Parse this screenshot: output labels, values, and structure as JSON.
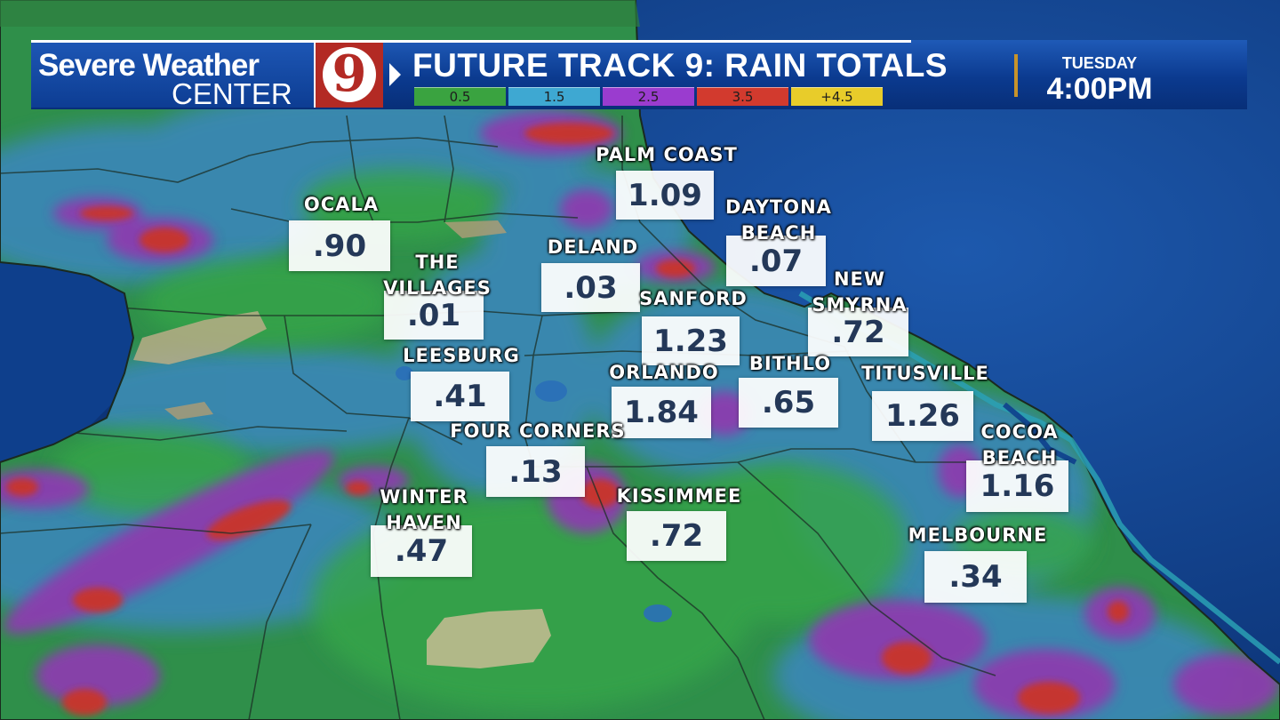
{
  "header": {
    "brand_line1": "Severe Weather",
    "brand_line2": "CENTER",
    "logo_text": "9",
    "title": "FUTURE TRACK 9: RAIN TOTALS",
    "day": "TUESDAY",
    "time": "4:00PM"
  },
  "legend": [
    {
      "label": "0.5",
      "color": "#3aa340"
    },
    {
      "label": "1.5",
      "color": "#3ea8d2"
    },
    {
      "label": "2.5",
      "color": "#9a3ccf"
    },
    {
      "label": "3.5",
      "color": "#d23a2e"
    },
    {
      "label": "+4.5",
      "color": "#e8cc2a"
    }
  ],
  "colors": {
    "ocean": "#0d3a82",
    "header_blue": "#0b3a8f",
    "logo_red": "#b32a24",
    "value_text": "#243858",
    "divider_gold": "#c7932b"
  },
  "cities": [
    {
      "name": "OCALA",
      "value": ".90"
    },
    {
      "name": "PALM COAST",
      "value": "1.09"
    },
    {
      "name": "DAYTONA BEACH",
      "value": ".07"
    },
    {
      "name": "DELAND",
      "value": ".03"
    },
    {
      "name": "THE VILLAGES",
      "value": ".01"
    },
    {
      "name": "NEW SMYRNA",
      "value": ".72"
    },
    {
      "name": "SANFORD",
      "value": "1.23"
    },
    {
      "name": "LEESBURG",
      "value": ".41"
    },
    {
      "name": "ORLANDO",
      "value": "1.84"
    },
    {
      "name": "BITHLO",
      "value": ".65"
    },
    {
      "name": "TITUSVILLE",
      "value": "1.26"
    },
    {
      "name": "FOUR CORNERS",
      "value": ".13"
    },
    {
      "name": "COCOA BEACH",
      "value": "1.16"
    },
    {
      "name": "WINTER HAVEN",
      "value": ".47"
    },
    {
      "name": "KISSIMMEE",
      "value": ".72"
    },
    {
      "name": "MELBOURNE",
      "value": ".34"
    }
  ]
}
